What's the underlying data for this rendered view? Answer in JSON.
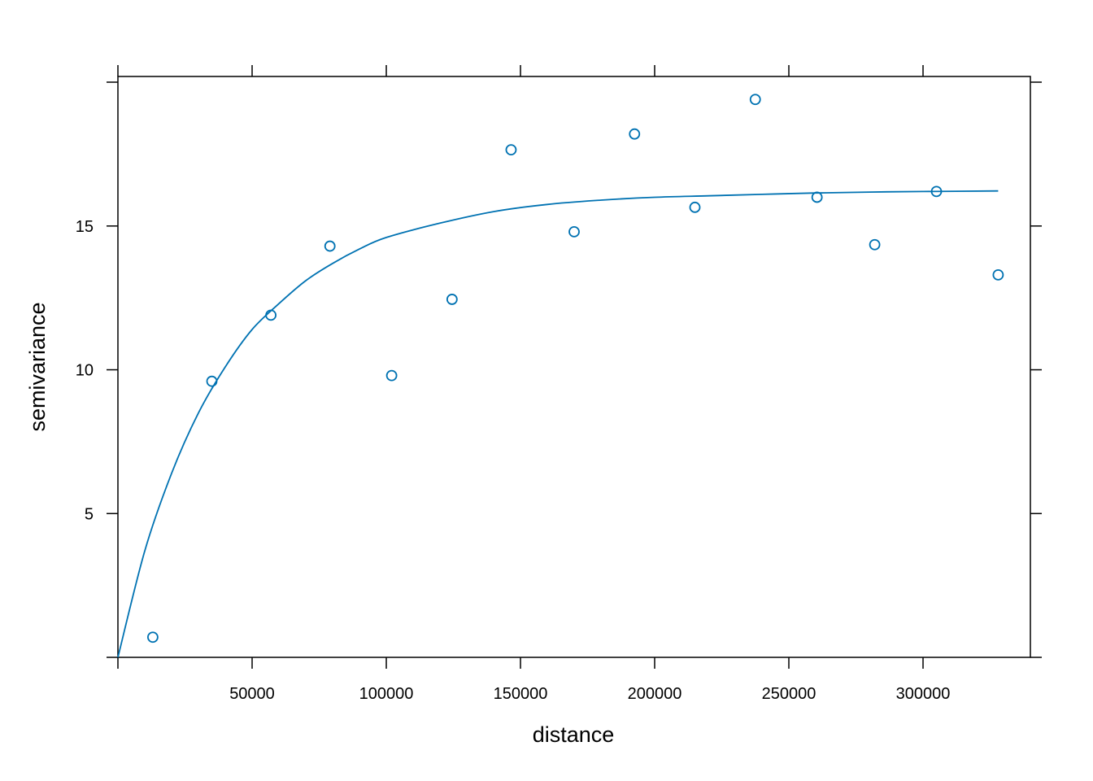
{
  "chart_data": {
    "type": "scatter",
    "xlabel": "distance",
    "ylabel": "semivariance",
    "xlim": [
      0,
      340000
    ],
    "ylim": [
      0,
      20.2
    ],
    "x_ticks": [
      50000,
      100000,
      150000,
      200000,
      250000,
      300000
    ],
    "x_tick_labels": [
      "50000",
      "100000",
      "150000",
      "200000",
      "250000",
      "300000"
    ],
    "y_ticks": [
      5,
      10,
      15
    ],
    "y_tick_labels": [
      "5",
      "10",
      "15"
    ],
    "grid": false,
    "color": "#0072b2",
    "points": [
      {
        "x": 13000,
        "y": 0.7
      },
      {
        "x": 35000,
        "y": 9.6
      },
      {
        "x": 57000,
        "y": 11.9
      },
      {
        "x": 79000,
        "y": 14.3
      },
      {
        "x": 102000,
        "y": 9.8
      },
      {
        "x": 124500,
        "y": 12.45
      },
      {
        "x": 146500,
        "y": 17.65
      },
      {
        "x": 170000,
        "y": 14.8
      },
      {
        "x": 192500,
        "y": 18.2
      },
      {
        "x": 215000,
        "y": 15.65
      },
      {
        "x": 237500,
        "y": 19.4
      },
      {
        "x": 260500,
        "y": 16.0
      },
      {
        "x": 282000,
        "y": 14.35
      },
      {
        "x": 305000,
        "y": 16.2
      },
      {
        "x": 328000,
        "y": 13.3
      }
    ],
    "fitted_curve": {
      "x": [
        0,
        10000,
        20000,
        30000,
        40000,
        50000,
        60000,
        70000,
        80000,
        90000,
        100000,
        120000,
        140000,
        160000,
        180000,
        200000,
        220000,
        240000,
        260000,
        280000,
        300000,
        328000
      ],
      "y": [
        0,
        3.7,
        6.4,
        8.5,
        10.1,
        11.4,
        12.3,
        13.1,
        13.7,
        14.2,
        14.6,
        15.1,
        15.5,
        15.75,
        15.9,
        16.0,
        16.05,
        16.1,
        16.15,
        16.18,
        16.2,
        16.22
      ]
    }
  }
}
